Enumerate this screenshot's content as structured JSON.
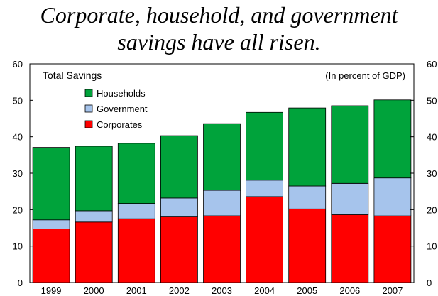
{
  "headline": {
    "line1": "Corporate, household, and government",
    "line2": "savings have all risen."
  },
  "chart_data": {
    "type": "bar",
    "stacked": true,
    "title": "Total Savings",
    "unit_note": "(In percent of GDP)",
    "categories": [
      "1999",
      "2000",
      "2001",
      "2002",
      "2003",
      "2004",
      "2005",
      "2006",
      "2007"
    ],
    "ylim": [
      0,
      60
    ],
    "yticks": [
      0,
      10,
      20,
      30,
      40,
      50,
      60
    ],
    "axes_labels": {
      "left": true,
      "right": true
    },
    "grid": false,
    "legend_position": "top-left",
    "series": [
      {
        "name": "Corporates",
        "color": "#ff0000",
        "values": [
          14.7,
          16.6,
          17.5,
          18.0,
          18.3,
          23.6,
          20.2,
          18.6,
          18.3
        ]
      },
      {
        "name": "Government",
        "color": "#a6c4ec",
        "values": [
          2.5,
          3.1,
          4.2,
          5.2,
          7.0,
          4.5,
          6.3,
          8.6,
          10.4
        ]
      },
      {
        "name": "Households",
        "color": "#00a33b",
        "values": [
          19.9,
          17.7,
          16.5,
          17.1,
          18.3,
          18.6,
          21.4,
          21.3,
          21.4
        ]
      }
    ],
    "legend_order": [
      "Households",
      "Government",
      "Corporates"
    ]
  }
}
